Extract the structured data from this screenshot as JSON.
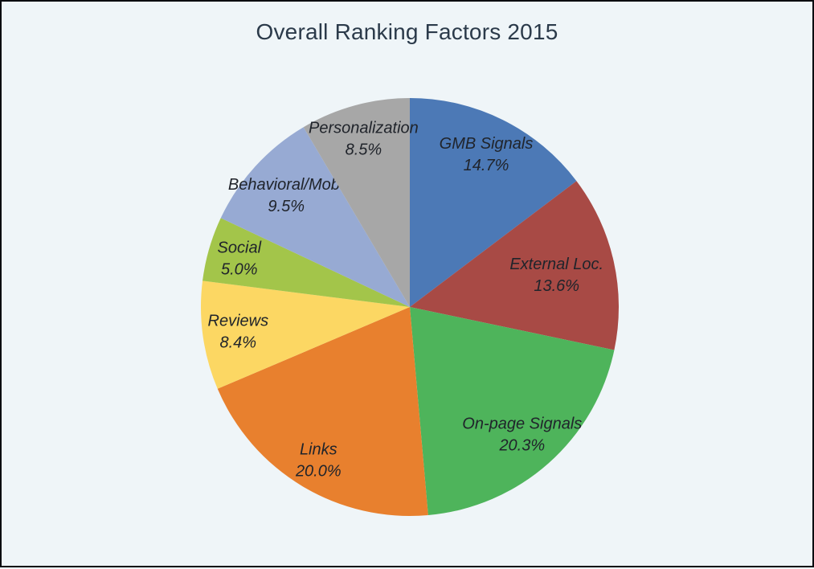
{
  "chart_data": {
    "type": "pie",
    "title": "Overall Ranking Factors 2015",
    "slices": [
      {
        "label": "GMB Signals",
        "value": 14.7,
        "color": "#4C79B6",
        "label_distance": 0.82
      },
      {
        "label": "External Loc.",
        "value": 13.6,
        "color": "#A84A45",
        "label_distance": 0.72
      },
      {
        "label": "On-page Signals",
        "value": 20.3,
        "color": "#4EB45B",
        "label_distance": 0.81
      },
      {
        "label": "Links",
        "value": 20.0,
        "color": "#E8802E",
        "label_distance": 0.85
      },
      {
        "label": "Reviews",
        "value": 8.4,
        "color": "#FCD763",
        "label_distance": 0.83
      },
      {
        "label": "Social",
        "value": 5.0,
        "color": "#A3C54A",
        "label_distance": 0.85
      },
      {
        "label": "Behavioral/Mob.",
        "value": 9.5,
        "color": "#97AAD3",
        "label_distance": 0.8
      },
      {
        "label": "Personalization",
        "value": 8.5,
        "color": "#A7A7A7",
        "label_distance": 0.84
      }
    ],
    "percent_format": "one_decimal_with_percent_sign",
    "start_at": "top",
    "direction": "clockwise",
    "label_position": "inside",
    "legend": "none",
    "background": "#EFF5F8",
    "title_color": "#2B3A4A",
    "label_text_color": "#20242B"
  }
}
